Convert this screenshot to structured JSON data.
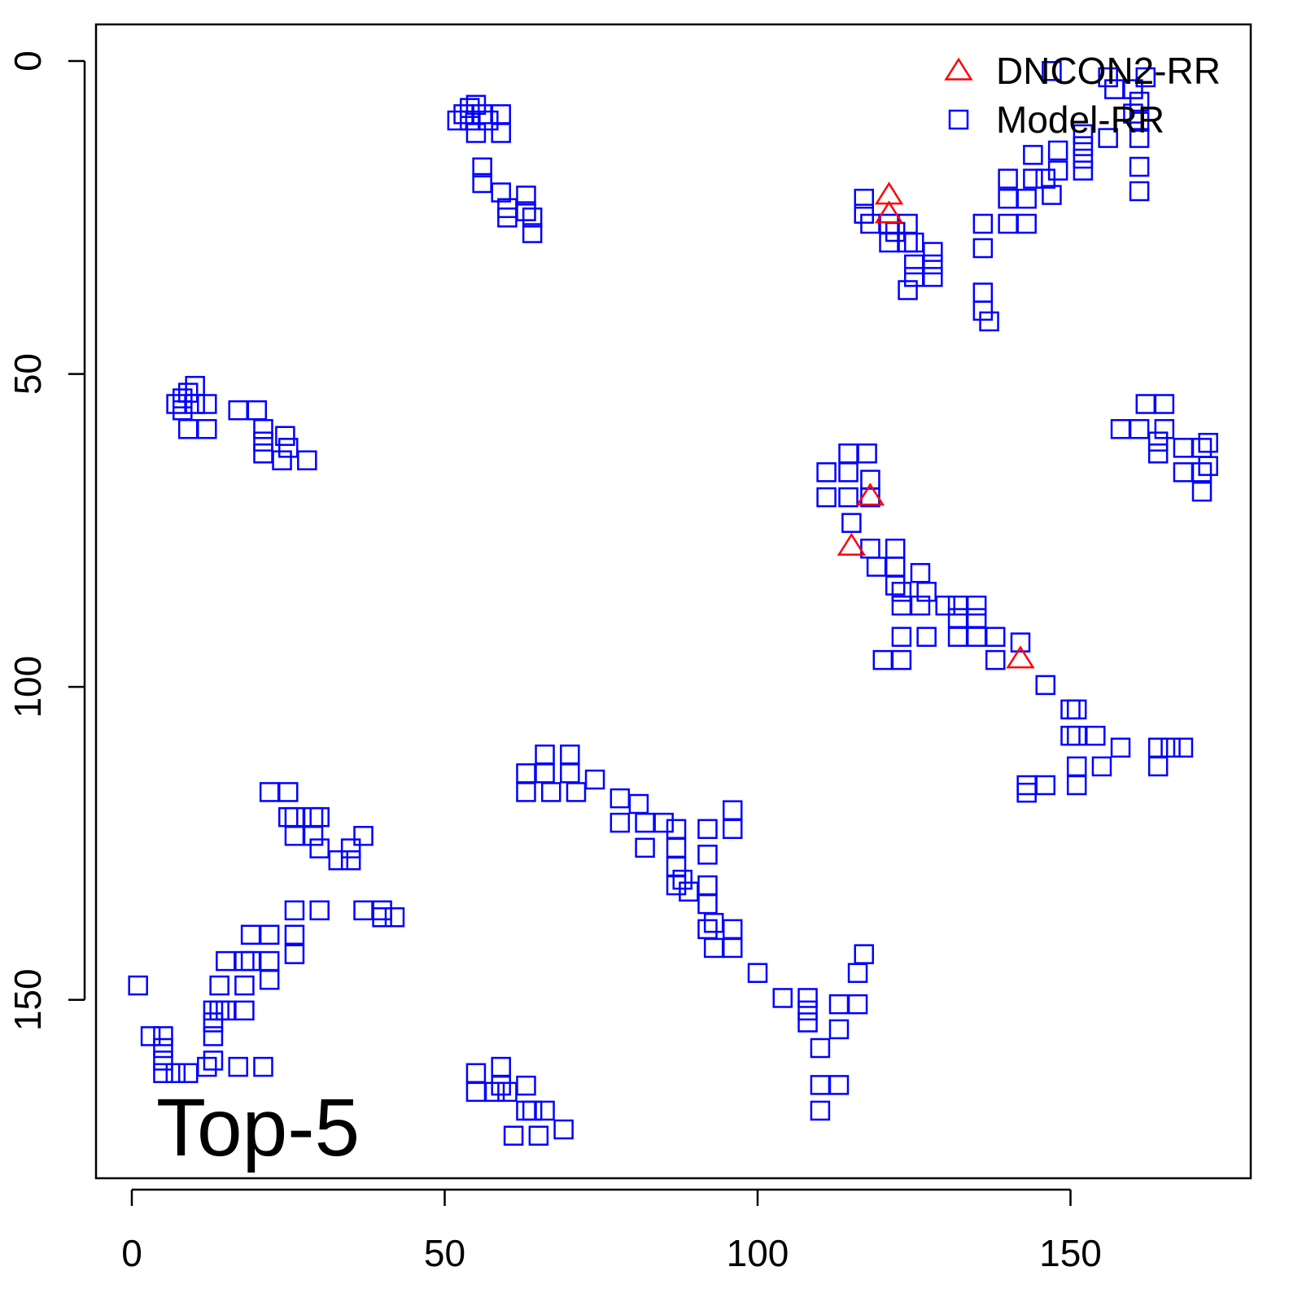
{
  "chart_data": {
    "type": "scatter",
    "annotation": "Top-5",
    "xlim": [
      -5.72,
      178.8
    ],
    "ylim": [
      -5.85,
      178.5
    ],
    "y_reversed": true,
    "xticks": [
      0,
      50,
      100,
      150
    ],
    "yticks": [
      0,
      50,
      100,
      150
    ],
    "legend": "top-right",
    "series": [
      {
        "name": "DNCON2-RR",
        "color": "#ff0000",
        "marker": "triangle",
        "x": [
          121,
          121,
          118,
          115,
          142
        ],
        "values": [
          21.4,
          24.4,
          69.5,
          77.5,
          95.5
        ]
      },
      {
        "name": "Model-RR",
        "color": "#0000ff",
        "marker": "square",
        "x": [
          52,
          53,
          54,
          55,
          54,
          56,
          57,
          55,
          59,
          59,
          56,
          56,
          59,
          60,
          63,
          60,
          63,
          64,
          64,
          7.1,
          8.1,
          9,
          10.1,
          8.1,
          10.1,
          12,
          9,
          12,
          17,
          20,
          21,
          21,
          24.5,
          25,
          21,
          24,
          28,
          117,
          117,
          118,
          121,
          121,
          124,
          124,
          125,
          128,
          125,
          128,
          125,
          128,
          124,
          122,
          136,
          136,
          140,
          140,
          140,
          143,
          143,
          144,
          144,
          147,
          148,
          148,
          152,
          152,
          152,
          156,
          157,
          156,
          160,
          160,
          161,
          161,
          161,
          161,
          162,
          161,
          136,
          136,
          137,
          147,
          152,
          146,
          158,
          161,
          162,
          165,
          165,
          164,
          164,
          168,
          168,
          171,
          171,
          171,
          172,
          172,
          114.5,
          117.5,
          111,
          114.5,
          118,
          111,
          114.5,
          118,
          115,
          118,
          122,
          119,
          122,
          122,
          126,
          123,
          123,
          126,
          127,
          130,
          132,
          135,
          132,
          135,
          132,
          135,
          138,
          138,
          142,
          123,
          127,
          120,
          123,
          146,
          150,
          151,
          150,
          151,
          154,
          158,
          151,
          155,
          151,
          143,
          143,
          146,
          164,
          166,
          168,
          164,
          1,
          3,
          5,
          5,
          5,
          5,
          7,
          9,
          12,
          13,
          17,
          21,
          13,
          13,
          13,
          14,
          15,
          18,
          14,
          18,
          18,
          15,
          19,
          22,
          22,
          19,
          22,
          26,
          26,
          26,
          30,
          37,
          40,
          42,
          40,
          22,
          25,
          26,
          25,
          29,
          30,
          29,
          30,
          33,
          35,
          35,
          37,
          26,
          55,
          55,
          59,
          59,
          60,
          63,
          63,
          61,
          64,
          65,
          66,
          69,
          58,
          63,
          63,
          66,
          66,
          67,
          70,
          70,
          71,
          74,
          78,
          78,
          81,
          82,
          82,
          85,
          87,
          87,
          87,
          87,
          88,
          89,
          92,
          92,
          92,
          92,
          93,
          96,
          96,
          92,
          96,
          96,
          93,
          100,
          104,
          108,
          108,
          110,
          113,
          113,
          116,
          116,
          117,
          110,
          110,
          113,
          108
        ],
        "values": [
          9.5,
          8.5,
          7.5,
          7,
          9.5,
          8.5,
          9.5,
          11.5,
          8.5,
          11.5,
          17,
          19.5,
          21,
          23.5,
          21.5,
          25,
          24,
          27.5,
          25,
          54.8,
          53.9,
          53,
          51.9,
          55.8,
          54.8,
          54.8,
          58.8,
          58.8,
          55.8,
          55.8,
          58.8,
          60.8,
          59.9,
          61.8,
          62.7,
          63.8,
          63.8,
          22,
          24.4,
          26,
          26,
          29,
          26,
          29,
          29,
          30.5,
          32.5,
          32.5,
          34.5,
          34.5,
          36.6,
          27.3,
          26,
          29.9,
          26,
          22,
          18.8,
          26,
          22,
          18.8,
          15,
          21.4,
          17.5,
          14.3,
          13.6,
          17.5,
          11.7,
          12.3,
          4.5,
          2.6,
          4.5,
          8.4,
          9.7,
          12.3,
          16.9,
          20.8,
          2.6,
          6.5,
          37,
          39.9,
          41.6,
          1.6,
          15.6,
          18.8,
          58.8,
          58.8,
          54.8,
          54.8,
          58.8,
          60.8,
          62.7,
          61.8,
          65.7,
          61.8,
          65.7,
          68.8,
          61,
          64.7,
          62.7,
          62.7,
          65.7,
          65.7,
          66.9,
          69.7,
          69.7,
          69.7,
          73.8,
          77.9,
          77.9,
          80.8,
          80.8,
          83.8,
          81.8,
          84.8,
          87,
          87,
          84.8,
          87,
          87,
          87,
          89,
          89,
          92,
          92,
          92,
          95.7,
          92.9,
          92,
          92,
          95.7,
          95.7,
          99.7,
          103.6,
          103.6,
          107.8,
          107.8,
          107.8,
          109.7,
          112.7,
          112.7,
          115.7,
          115.7,
          116.9,
          115.7,
          109.7,
          109.7,
          109.7,
          112.7,
          147.7,
          155.8,
          155.8,
          157.7,
          159.7,
          161.7,
          161.7,
          161.7,
          160.7,
          159.7,
          160.7,
          160.7,
          155.8,
          153.6,
          151.7,
          151.7,
          151.7,
          151.7,
          147.7,
          147.7,
          143.8,
          143.8,
          143.8,
          143.8,
          139.6,
          139.6,
          146.8,
          142.7,
          139.6,
          135.7,
          135.7,
          135.7,
          135.7,
          136.8,
          136.8,
          116.8,
          116.8,
          120.8,
          120.8,
          120.8,
          120.8,
          123.8,
          125.8,
          127.7,
          125.8,
          127.7,
          123.8,
          123.8,
          161.7,
          164.7,
          160.7,
          163.7,
          164.7,
          163.7,
          167.7,
          171.7,
          167.7,
          171.7,
          167.7,
          170.7,
          164.7,
          113.8,
          116.8,
          110.8,
          113.8,
          116.8,
          110.8,
          113.8,
          116.8,
          114.8,
          117.8,
          121.7,
          118.7,
          121.7,
          125.7,
          121.7,
          122.7,
          125.7,
          128.7,
          131.7,
          130.8,
          132.7,
          122.7,
          126.8,
          131.7,
          134.7,
          137.7,
          119.7,
          122.7,
          138.7,
          138.7,
          141.7,
          141.7,
          145.7,
          149.7,
          149.7,
          153.6,
          157.7,
          154.7,
          150.7,
          150.7,
          145.7,
          142.7,
          163.6,
          167.7,
          163.6,
          151.7
        ]
      }
    ]
  }
}
